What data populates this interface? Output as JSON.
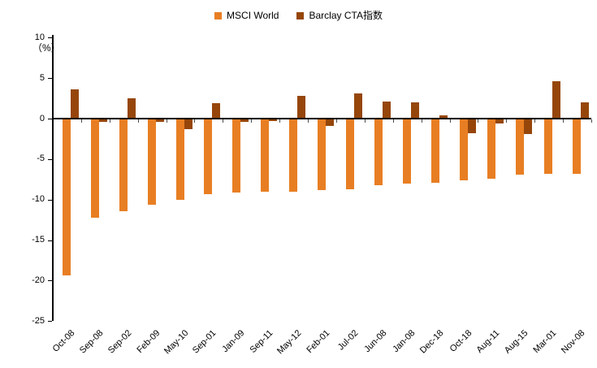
{
  "chart_data": {
    "type": "bar",
    "title": "",
    "unit_label": "（%）",
    "categories": [
      "Oct-08",
      "Sep-08",
      "Sep-02",
      "Feb-09",
      "May-10",
      "Sep-01",
      "Jan-09",
      "Sep-11",
      "May-12",
      "Feb-01",
      "Jul-02",
      "Jun-08",
      "Jan-08",
      "Dec-18",
      "Oct-18",
      "Aug-11",
      "Aug-15",
      "Mar-01",
      "Nov-08"
    ],
    "series": [
      {
        "name": "MSCI World",
        "color": "#E87E23",
        "values": [
          -19.3,
          -12.1,
          -11.3,
          -10.5,
          -9.9,
          -9.2,
          -9.0,
          -8.9,
          -8.9,
          -8.7,
          -8.6,
          -8.1,
          -7.9,
          -7.8,
          -7.5,
          -7.3,
          -6.8,
          -6.7,
          -6.7
        ]
      },
      {
        "name": "Barclay CTA指数",
        "color": "#96460B",
        "values": [
          3.5,
          -0.3,
          2.4,
          -0.3,
          -1.2,
          1.8,
          -0.3,
          -0.2,
          2.7,
          -0.8,
          3.0,
          2.0,
          1.9,
          0.3,
          -1.7,
          -0.5,
          -1.8,
          4.5,
          1.9
        ]
      }
    ],
    "ylim": [
      -25,
      10
    ],
    "y_ticks": [
      10,
      5,
      0,
      -5,
      -10,
      -15,
      -20,
      -25
    ],
    "grid": false,
    "legend_position": "top-center",
    "axis_color": "#000000"
  }
}
